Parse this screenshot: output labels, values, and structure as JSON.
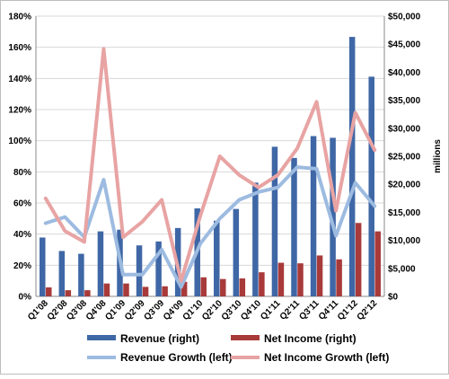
{
  "chart_data": {
    "type": "bar+line",
    "categories": [
      "Q1'08",
      "Q2'08",
      "Q3'08",
      "Q4'08",
      "Q1'09",
      "Q2'09",
      "Q3'09",
      "Q4'09",
      "Q1'10",
      "Q2'10",
      "Q3'10",
      "Q4'10",
      "Q1'11",
      "Q2'11",
      "Q3'11",
      "Q4'11",
      "Q1'12",
      "Q2'12"
    ],
    "left_axis": {
      "ticks": [
        "0%",
        "20%",
        "40%",
        "60%",
        "80%",
        "100%",
        "120%",
        "140%",
        "160%",
        "180%"
      ],
      "range": [
        0,
        180
      ]
    },
    "right_axis": {
      "label": "millions",
      "ticks": [
        "$0",
        "$5,000",
        "$10,000",
        "$15,000",
        "$20,000",
        "$25,000",
        "$30,000",
        "$35,000",
        "$40,000",
        "$45,000",
        "$50,000"
      ],
      "range": [
        0,
        50000
      ]
    },
    "series": [
      {
        "name": "Revenue (right)",
        "kind": "bar",
        "axis": "right",
        "color": "#3f67a6",
        "values": [
          10500,
          8100,
          7600,
          11600,
          11900,
          9100,
          9800,
          12200,
          15700,
          13500,
          15600,
          20300,
          26700,
          24700,
          28600,
          28300,
          46300,
          39200
        ]
      },
      {
        "name": "Net Income (right)",
        "kind": "bar",
        "axis": "right",
        "color": "#a83a3a",
        "values": [
          1600,
          1100,
          1100,
          2300,
          2300,
          1700,
          1800,
          2600,
          3400,
          3100,
          3200,
          4300,
          6000,
          5900,
          7300,
          6600,
          13100,
          11600
        ]
      },
      {
        "name": "Revenue Growth (left)",
        "kind": "line",
        "axis": "left",
        "color": "#9dbbe0",
        "values": [
          47,
          51,
          38,
          75,
          14,
          14,
          30,
          6,
          34,
          50,
          62,
          67,
          70,
          83,
          82,
          39,
          73,
          58
        ]
      },
      {
        "name": "Net Income Growth (left)",
        "kind": "line",
        "axis": "left",
        "color": "#e8a3a3",
        "values": [
          63,
          42,
          35,
          159,
          38,
          48,
          62,
          10,
          52,
          90,
          78,
          70,
          78,
          95,
          125,
          55,
          118,
          94
        ]
      }
    ],
    "grid": true,
    "legend_position": "bottom"
  }
}
